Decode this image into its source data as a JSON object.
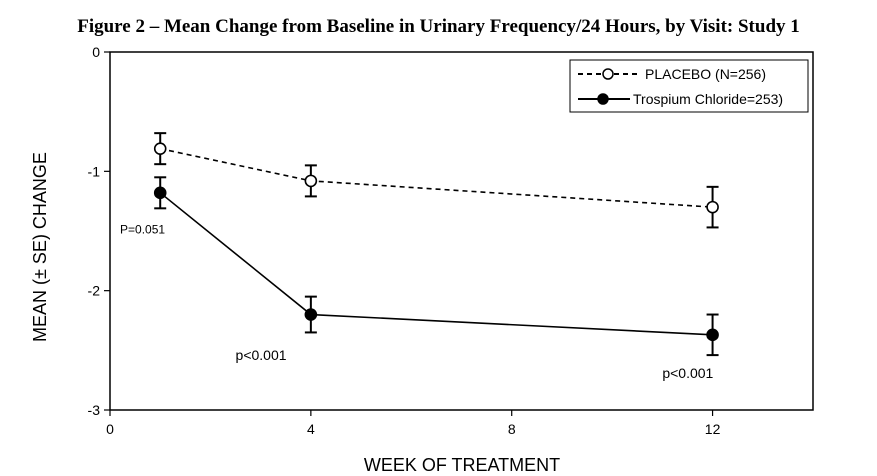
{
  "chart_data": {
    "type": "line",
    "title": "Figure 2 – Mean Change from Baseline in Urinary Frequency/24 Hours, by Visit: Study 1",
    "xlabel": "WEEK OF TREATMENT",
    "ylabel": "MEAN (± SE) CHANGE",
    "xlim": [
      0,
      14
    ],
    "ylim": [
      -3,
      0
    ],
    "x_ticks": [
      0,
      4,
      8,
      12
    ],
    "y_ticks": [
      0,
      -1,
      -2,
      -3
    ],
    "grid": false,
    "legend_position": "top-right",
    "series": [
      {
        "name": "PLACEBO (N=256)",
        "style": "dashed",
        "marker": "open-circle",
        "x": [
          1,
          4,
          12
        ],
        "values": [
          -0.81,
          -1.08,
          -1.3
        ],
        "se": [
          0.13,
          0.13,
          0.17
        ],
        "color": "#000000"
      },
      {
        "name": "Trospium Chloride=253)",
        "style": "solid",
        "marker": "filled-circle",
        "x": [
          1,
          4,
          12
        ],
        "values": [
          -1.18,
          -2.2,
          -2.37
        ],
        "se": [
          0.13,
          0.15,
          0.17
        ],
        "color": "#000000"
      }
    ],
    "annotations": [
      {
        "text": "P=0.051",
        "x": 0.2,
        "y": -1.52,
        "size": "small"
      },
      {
        "text": "p<0.001",
        "x": 2.5,
        "y": -2.58,
        "size": "normal"
      },
      {
        "text": "p<0.001",
        "x": 11,
        "y": -2.73,
        "size": "normal"
      }
    ]
  }
}
